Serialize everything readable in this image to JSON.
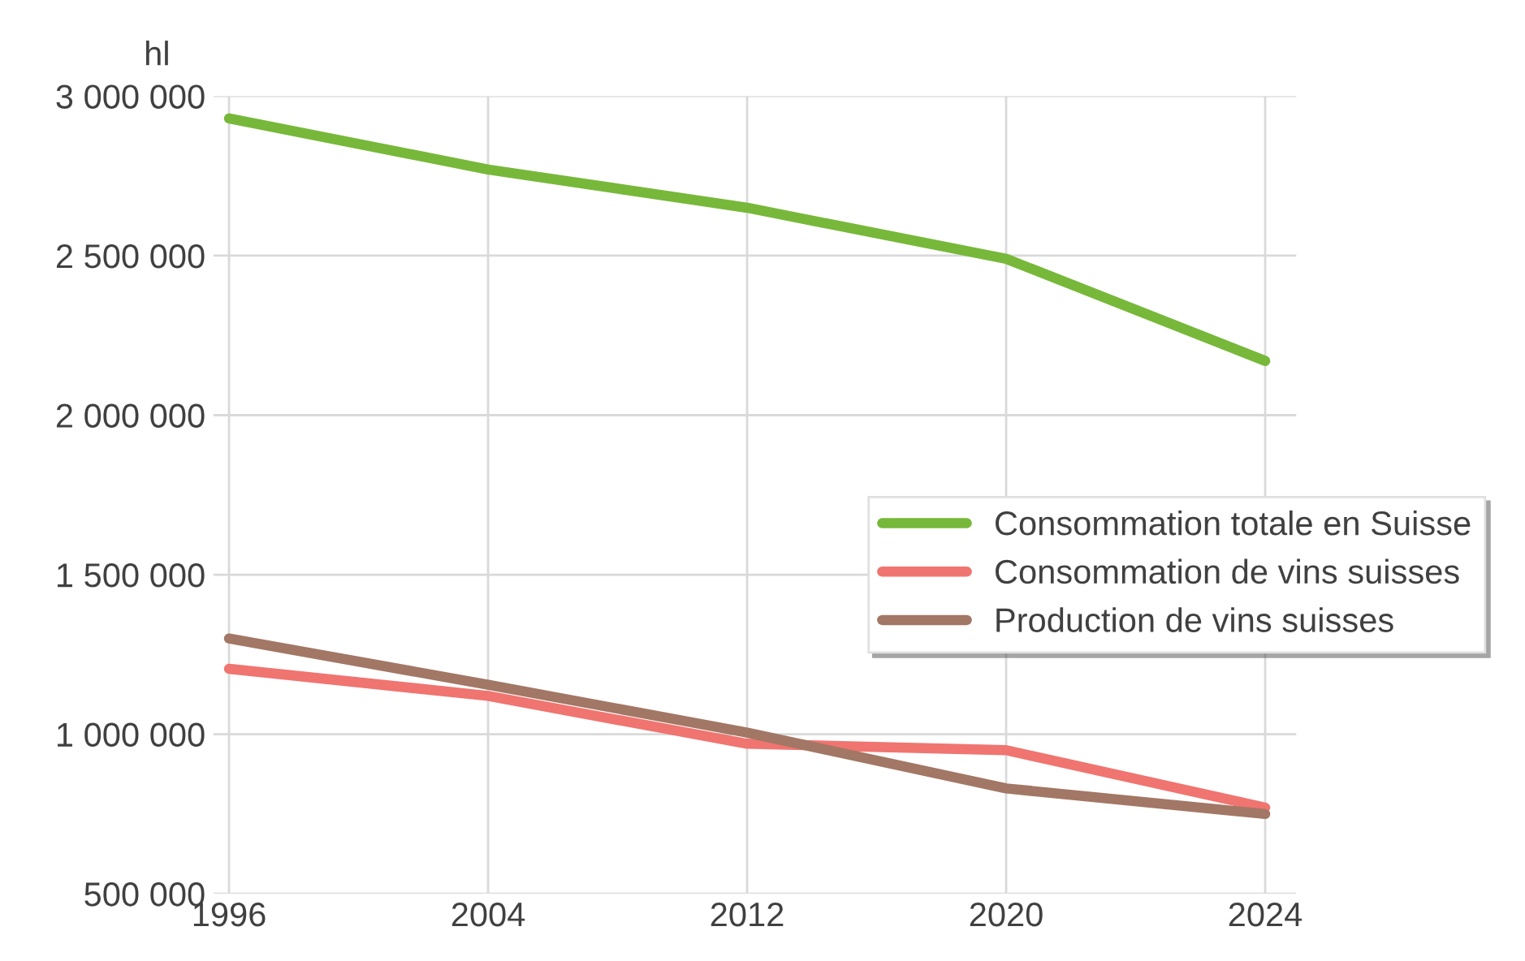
{
  "chart_data": {
    "type": "line",
    "ylabel": "hl",
    "categories": [
      "1996",
      "2004",
      "2012",
      "2020",
      "2024"
    ],
    "series": [
      {
        "name": "Consommation totale en Suisse",
        "color": "#77b83a",
        "values": [
          2930000,
          2770000,
          2650000,
          2490000,
          2170000
        ]
      },
      {
        "name": "Consommation de vins suisses",
        "color": "#f07470",
        "values": [
          1205000,
          1120000,
          970000,
          950000,
          770000
        ]
      },
      {
        "name": "Production de vins suisses",
        "color": "#a27765",
        "values": [
          1300000,
          1155000,
          1005000,
          830000,
          750000
        ]
      }
    ],
    "ylim": [
      500000,
      3000000
    ],
    "yticks": [
      {
        "value": 500000,
        "label": "500 000"
      },
      {
        "value": 1000000,
        "label": "1 000 000"
      },
      {
        "value": 1500000,
        "label": "1 500 000"
      },
      {
        "value": 2000000,
        "label": "2 000 000"
      },
      {
        "value": 2500000,
        "label": "2 500 000"
      },
      {
        "value": 3000000,
        "label": "3 000 000"
      }
    ],
    "grid": true,
    "legend": "right",
    "marker": "none",
    "line_style": "solid"
  }
}
